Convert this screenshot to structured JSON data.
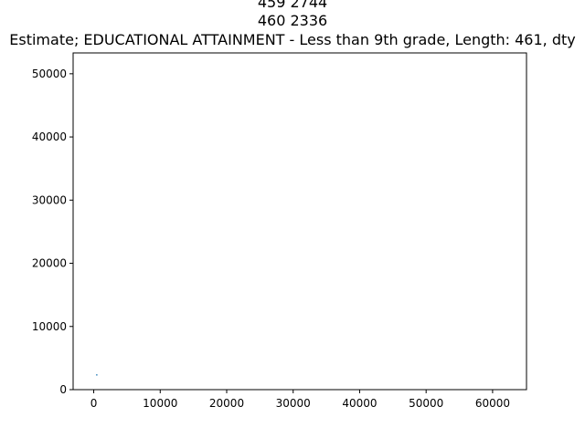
{
  "chart_data": {
    "type": "scatter",
    "title_lines": [
      "459    2744",
      "460    2336",
      "Estimate; EDUCATIONAL ATTAINMENT - Less than 9th grade, Length: 461, dty"
    ],
    "xlabel": "",
    "ylabel": "",
    "xlim": [
      -3100,
      65100
    ],
    "ylim": [
      0,
      53300
    ],
    "x_ticks": [
      0,
      10000,
      20000,
      30000,
      40000,
      50000,
      60000
    ],
    "y_ticks": [
      0,
      10000,
      20000,
      30000,
      40000,
      50000
    ],
    "grid": false,
    "series": [
      {
        "color": "#1f77b4",
        "points": [
          [
            460,
            2336
          ]
        ]
      }
    ]
  }
}
